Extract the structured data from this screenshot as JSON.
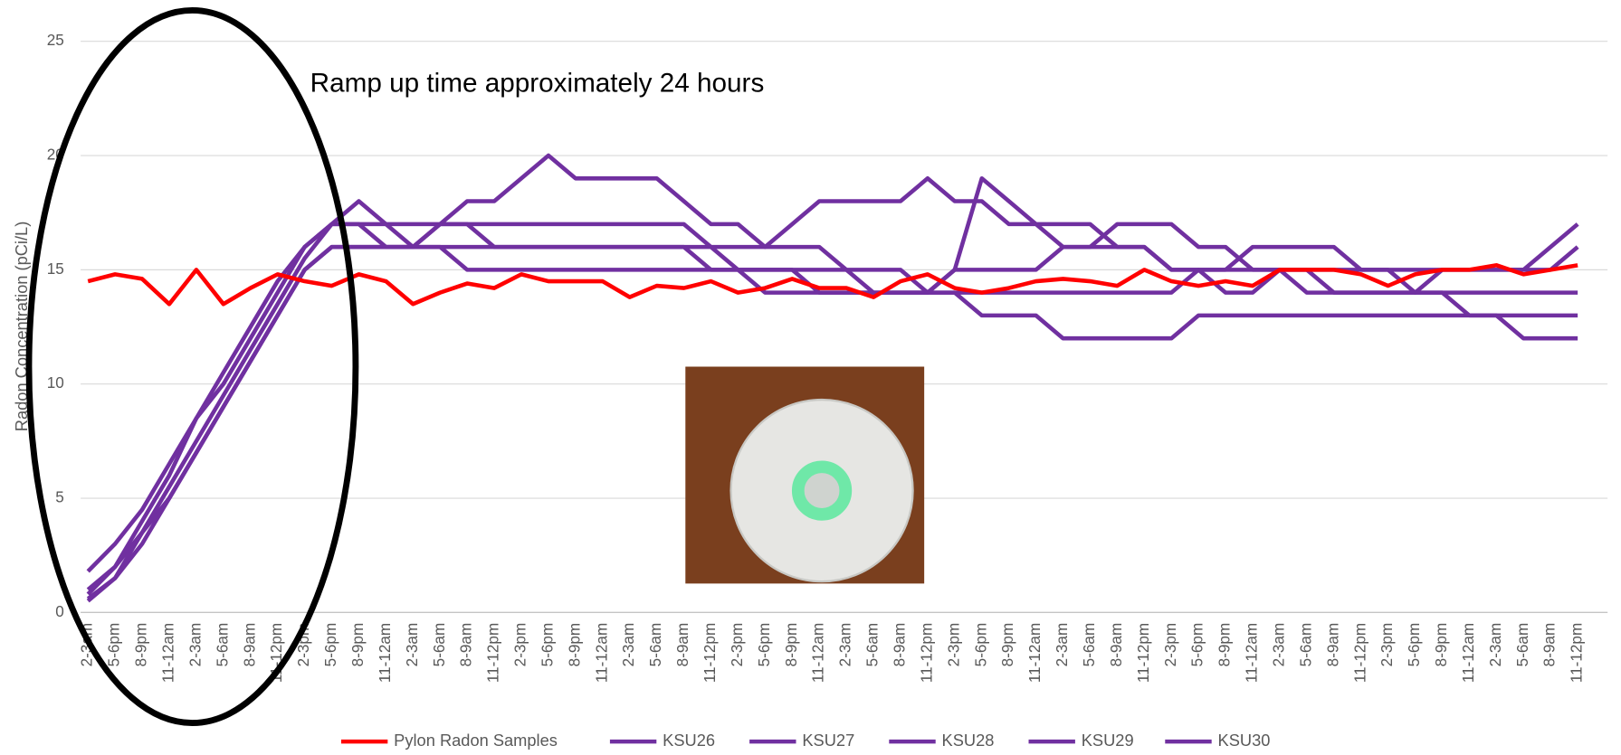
{
  "chart_data": {
    "type": "line",
    "y_label": "Radon Concentration (pCi/L)",
    "annotation": "Ramp up time approximately 24 hours",
    "categories": [
      "2-3am",
      "5-6pm",
      "8-9pm",
      "11-12am",
      "2-3am",
      "5-6am",
      "8-9am",
      "11-12pm",
      "2-3pm",
      "5-6pm",
      "8-9pm",
      "11-12am",
      "2-3am",
      "5-6am",
      "8-9am",
      "11-12pm",
      "2-3pm",
      "5-6pm",
      "8-9pm",
      "11-12am",
      "2-3am",
      "5-6am",
      "8-9am",
      "11-12pm",
      "2-3pm",
      "5-6pm",
      "8-9pm",
      "11-12am",
      "2-3am",
      "5-6am",
      "8-9am",
      "11-12pm",
      "2-3pm",
      "5-6pm",
      "8-9pm",
      "11-12am",
      "2-3am",
      "5-6am",
      "8-9am",
      "11-12pm",
      "2-3pm",
      "5-6pm",
      "8-9pm",
      "11-12am",
      "2-3am",
      "5-6am",
      "8-9am",
      "11-12pm",
      "2-3pm",
      "5-6pm",
      "8-9pm",
      "11-12am",
      "2-3am",
      "5-6am",
      "8-9am",
      "11-12pm"
    ],
    "series": [
      {
        "name": "Pylon Radon Samples",
        "color": "#ff0000",
        "values": [
          14.5,
          14.8,
          14.6,
          13.5,
          15,
          13.5,
          14.2,
          14.8,
          14.5,
          14.3,
          14.8,
          14.5,
          13.5,
          14,
          14.4,
          14.2,
          14.8,
          14.5,
          14.5,
          14.5,
          13.8,
          14.3,
          14.2,
          14.5,
          14,
          14.2,
          14.6,
          14.2,
          14.2,
          13.8,
          14.5,
          14.8,
          14.2,
          14,
          14.2,
          14.5,
          14.6,
          14.5,
          14.3,
          15,
          14.5,
          14.3,
          14.5,
          14.3,
          15,
          15,
          15,
          14.8,
          14.3,
          14.8,
          15,
          15,
          15.2,
          14.8,
          15,
          15.2
        ]
      },
      {
        "name": "KSU26",
        "color": "#7030a0",
        "values": [
          0.8,
          2,
          4,
          6,
          8.5,
          10.5,
          12.5,
          14.5,
          16,
          17,
          18,
          17,
          16,
          17,
          18,
          18,
          19,
          20,
          19,
          19,
          19,
          19,
          18,
          17,
          17,
          16,
          17,
          18,
          18,
          18,
          18,
          19,
          18,
          18,
          17,
          17,
          16,
          16,
          17,
          17,
          17,
          16,
          16,
          15,
          15,
          15,
          15,
          15,
          15,
          14,
          15,
          15,
          15,
          15,
          16,
          17
        ]
      },
      {
        "name": "KSU27",
        "color": "#7030a0",
        "values": [
          0.5,
          1.5,
          3.5,
          5.5,
          7.5,
          9.5,
          11.5,
          13.5,
          15.5,
          17,
          17,
          17,
          17,
          17,
          17,
          17,
          17,
          17,
          17,
          17,
          17,
          17,
          17,
          16,
          16,
          16,
          16,
          16,
          15,
          15,
          15,
          14,
          15,
          15,
          15,
          15,
          16,
          16,
          16,
          16,
          15,
          15,
          15,
          16,
          16,
          16,
          16,
          15,
          15,
          15,
          15,
          15,
          15,
          15,
          15,
          16
        ]
      },
      {
        "name": "KSU28",
        "color": "#7030a0",
        "values": [
          1,
          2,
          3.5,
          5,
          7,
          9,
          11,
          13,
          15,
          16,
          16,
          16,
          16,
          16,
          16,
          16,
          16,
          16,
          16,
          16,
          16,
          16,
          16,
          15,
          15,
          15,
          15,
          15,
          15,
          14,
          14,
          14,
          14,
          13,
          13,
          13,
          12,
          12,
          12,
          12,
          12,
          13,
          13,
          13,
          13,
          13,
          13,
          13,
          13,
          13,
          13,
          13,
          13,
          12,
          12,
          12
        ]
      },
      {
        "name": "KSU29",
        "color": "#7030a0",
        "values": [
          1.8,
          3,
          4.5,
          6.5,
          8.5,
          10,
          12,
          14,
          16,
          17,
          17,
          16,
          16,
          17,
          17,
          16,
          16,
          16,
          16,
          16,
          16,
          16,
          16,
          16,
          15,
          15,
          15,
          14,
          14,
          14,
          14,
          14,
          15,
          19,
          18,
          17,
          17,
          17,
          16,
          16,
          15,
          15,
          14,
          14,
          15,
          15,
          14,
          14,
          14,
          14,
          14,
          13,
          13,
          13,
          13,
          13
        ]
      },
      {
        "name": "KSU30",
        "color": "#7030a0",
        "values": [
          0.6,
          1.5,
          3,
          5,
          7,
          9,
          11,
          13,
          15,
          16,
          16,
          16,
          16,
          16,
          15,
          15,
          15,
          15,
          15,
          15,
          15,
          15,
          15,
          15,
          15,
          14,
          14,
          14,
          14,
          14,
          14,
          14,
          14,
          14,
          14,
          14,
          14,
          14,
          14,
          14,
          14,
          15,
          15,
          15,
          15,
          14,
          14,
          14,
          14,
          14,
          14,
          14,
          14,
          14,
          14,
          14
        ]
      }
    ],
    "ylim": [
      0,
      25
    ],
    "yticks": [
      0,
      5,
      10,
      15,
      20,
      25
    ],
    "grid": true,
    "legend": "bottom"
  }
}
